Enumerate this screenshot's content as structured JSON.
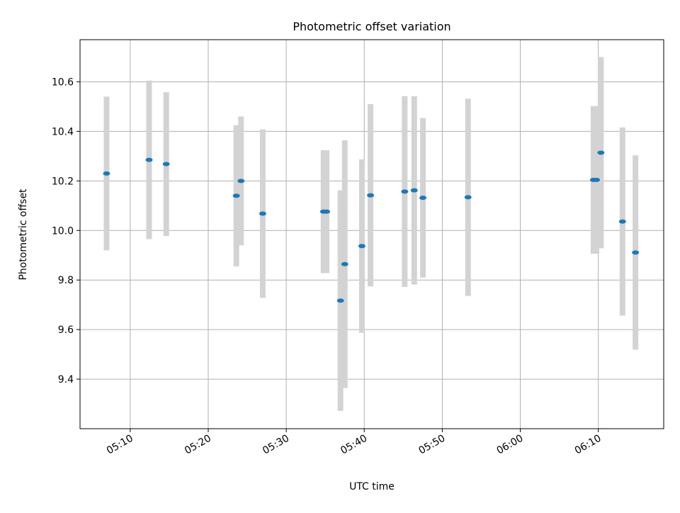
{
  "chart_data": {
    "type": "scatter",
    "title": "Photometric offset variation",
    "xlabel": "UTC time",
    "ylabel": "Photometric offset",
    "x_ticks": [
      "05:10",
      "05:20",
      "05:30",
      "05:40",
      "05:50",
      "06:00",
      "06:10"
    ],
    "y_ticks": [
      "9.4",
      "9.6",
      "9.8",
      "10.0",
      "10.2",
      "10.4",
      "10.6"
    ],
    "xlim": [
      "05:03:34",
      "06:18:23"
    ],
    "ylim": [
      9.2,
      10.77
    ],
    "grid": true,
    "colors": {
      "marker": "#1f77b4",
      "errorbar": "#d3d3d3",
      "grid": "#b0b0b0",
      "axes": "#000000"
    },
    "series": [
      {
        "points": [
          {
            "x": "05:06:58",
            "y": 10.23,
            "yerr": 0.31
          },
          {
            "x": "05:12:25",
            "y": 10.285,
            "yerr": 0.32
          },
          {
            "x": "05:14:37",
            "y": 10.268,
            "yerr": 0.29
          },
          {
            "x": "05:23:36",
            "y": 10.14,
            "yerr": 0.285
          },
          {
            "x": "05:24:12",
            "y": 10.2,
            "yerr": 0.26
          },
          {
            "x": "05:26:59",
            "y": 10.068,
            "yerr": 0.34
          },
          {
            "x": "05:34:47",
            "y": 10.076,
            "yerr": 0.248
          },
          {
            "x": "05:35:10",
            "y": 10.076,
            "yerr": 0.248
          },
          {
            "x": "05:36:57",
            "y": 9.717,
            "yerr": 0.445
          },
          {
            "x": "05:37:30",
            "y": 9.864,
            "yerr": 0.5
          },
          {
            "x": "05:39:42",
            "y": 9.937,
            "yerr": 0.35
          },
          {
            "x": "05:40:48",
            "y": 10.142,
            "yerr": 0.368
          },
          {
            "x": "05:45:11",
            "y": 10.157,
            "yerr": 0.385
          },
          {
            "x": "05:46:24",
            "y": 10.162,
            "yerr": 0.38
          },
          {
            "x": "05:47:31",
            "y": 10.132,
            "yerr": 0.322
          },
          {
            "x": "05:53:18",
            "y": 10.134,
            "yerr": 0.398
          },
          {
            "x": "06:09:23",
            "y": 10.204,
            "yerr": 0.298
          },
          {
            "x": "06:09:46",
            "y": 10.204,
            "yerr": 0.298
          },
          {
            "x": "06:10:20",
            "y": 10.314,
            "yerr": 0.386
          },
          {
            "x": "06:13:06",
            "y": 10.036,
            "yerr": 0.38
          },
          {
            "x": "06:14:46",
            "y": 9.911,
            "yerr": 0.392
          }
        ]
      }
    ]
  }
}
